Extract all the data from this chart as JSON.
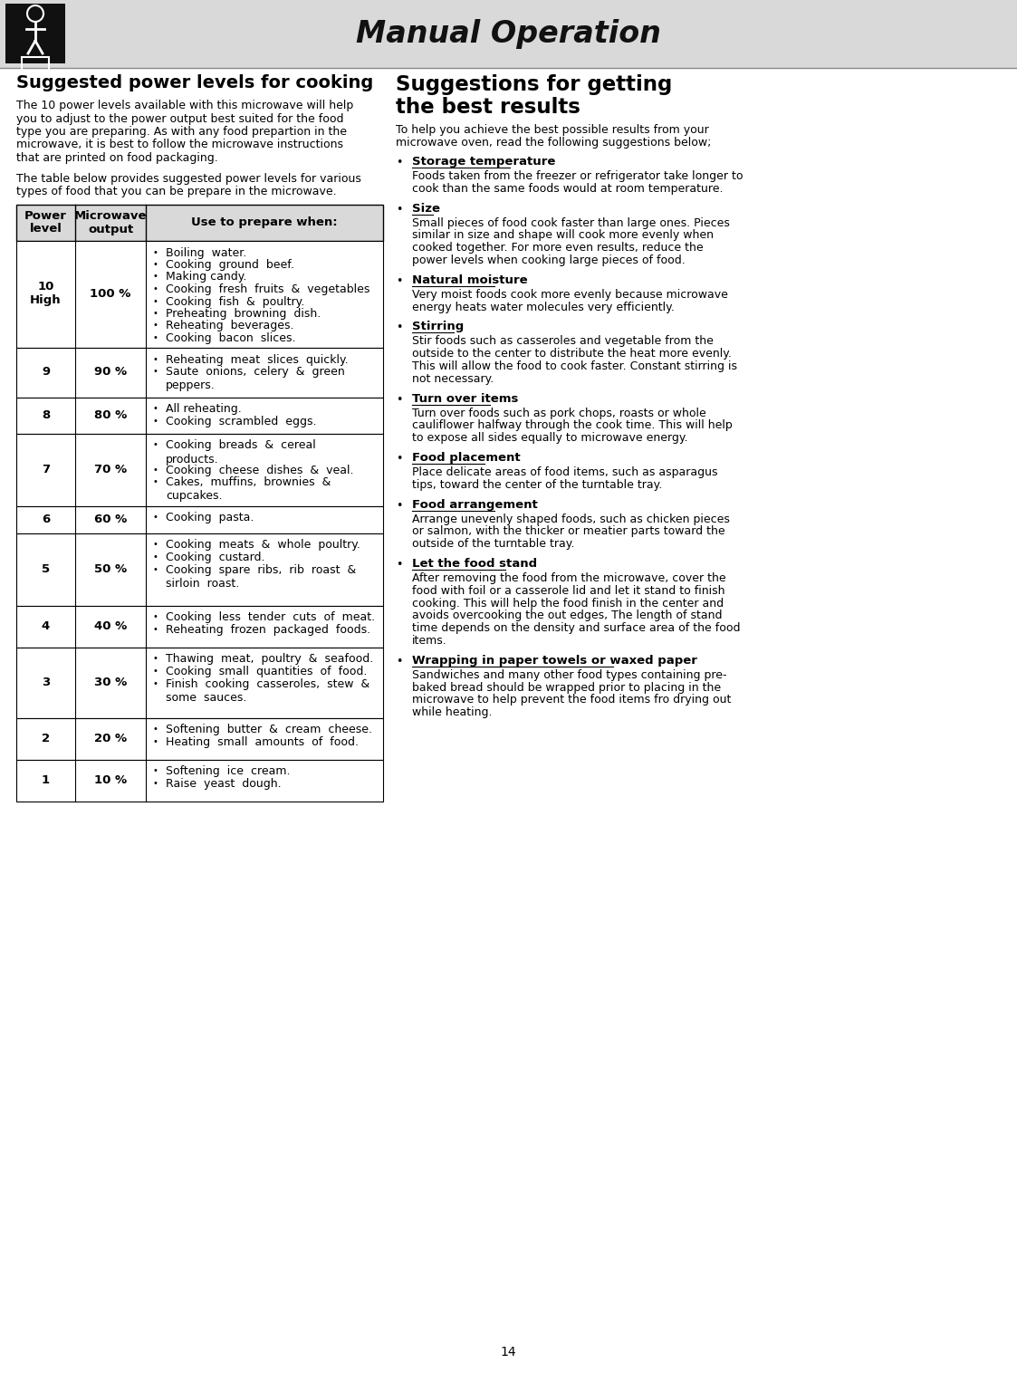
{
  "page_bg": "#ffffff",
  "header_bg": "#d9d9d9",
  "header_text": "Manual Operation",
  "header_icon_bg": "#111111",
  "table_header_bg": "#d9d9d9",
  "left_title": "Suggested power levels for cooking",
  "left_intro1": "The 10 power levels available with this microwave will help you to adjust to the power output best suited for the food type you are preparing. As with any food prepartion in the microwave, it is best to follow the microwave instructions that are printed on food packaging.",
  "left_intro2": "The table below provides suggested power levels for various types of food that you can be prepare in the microwave.",
  "table_headers": [
    "Power\nlevel",
    "Microwave\noutput",
    "Use to prepare when:"
  ],
  "table_rows": [
    {
      "level": "10\nHigh",
      "output": "100 %",
      "items": [
        "Boiling  water.",
        "Cooking  ground  beef.",
        "Making candy.",
        "Cooking  fresh  fruits  &  vegetables",
        "Cooking  fish  &  poultry.",
        "Preheating  browning  dish.",
        "Reheating  beverages.",
        "Cooking  bacon  slices."
      ]
    },
    {
      "level": "9",
      "output": "90 %",
      "items": [
        "Reheating  meat  slices  quickly.",
        "Saute  onions,  celery  &  green\npeppers."
      ]
    },
    {
      "level": "8",
      "output": "80 %",
      "items": [
        "All reheating.",
        "Cooking  scrambled  eggs."
      ]
    },
    {
      "level": "7",
      "output": "70 %",
      "items": [
        "Cooking  breads  &  cereal\nproducts.",
        "Cooking  cheese  dishes  &  veal.",
        "Cakes,  muffins,  brownies  &\ncupcakes."
      ]
    },
    {
      "level": "6",
      "output": "60 %",
      "items": [
        "Cooking  pasta."
      ]
    },
    {
      "level": "5",
      "output": "50 %",
      "items": [
        "Cooking  meats  &  whole  poultry.",
        "Cooking  custard.",
        "Cooking  spare  ribs,  rib  roast  &\nsirloin  roast."
      ]
    },
    {
      "level": "4",
      "output": "40 %",
      "items": [
        "Cooking  less  tender  cuts  of  meat.",
        "Reheating  frozen  packaged  foods."
      ]
    },
    {
      "level": "3",
      "output": "30 %",
      "items": [
        "Thawing  meat,  poultry  &  seafood.",
        "Cooking  small  quantities  of  food.",
        "Finish  cooking  casseroles,  stew  &\nsome  sauces."
      ]
    },
    {
      "level": "2",
      "output": "20 %",
      "items": [
        "Softening  butter  &  cream  cheese.",
        "Heating  small  amounts  of  food."
      ]
    },
    {
      "level": "1",
      "output": "10 %",
      "items": [
        "Softening  ice  cream.",
        "Raise  yeast  dough."
      ]
    }
  ],
  "right_title_line1": "Suggestions for getting",
  "right_title_line2": "the best results",
  "right_intro": "To help you achieve the best possible results from your microwave oven, read the following suggestions below;",
  "right_sections": [
    {
      "heading": "Storage  temperature",
      "body": "Foods taken from the freezer or refrigerator take longer to\ncook than the same foods would at room temperature."
    },
    {
      "heading": "Size",
      "body": "Small pieces of food cook faster than large ones. Pieces\nsimilar in size and shape will cook more evenly when\ncooked together. For more even results, reduce the\npower levels when cooking large pieces of food."
    },
    {
      "heading": "Natural  moisture",
      "body": "Very moist foods cook more evenly because microwave\nenergy heats water molecules very efficiently."
    },
    {
      "heading": "Stirring",
      "body": "Stir foods such as casseroles and vegetable from the\noutside to the center to distribute the heat more evenly.\nThis will allow the food to cook faster. Constant stirring is\nnot necessary."
    },
    {
      "heading": "Turn  over  items",
      "body": "Turn over foods such as pork chops, roasts or whole\ncauliflower halfway through the cook time. This will help\nto expose all sides equally to microwave energy."
    },
    {
      "heading": "Food  placement",
      "body": "Place delicate areas of food items, such as asparagus\ntips, toward the center of the turntable tray."
    },
    {
      "heading": "Food  arrangement",
      "body": "Arrange unevenly shaped foods, such as chicken pieces\nor salmon, with the thicker or meatier parts toward the\noutside of the turntable tray."
    },
    {
      "heading": "Let  the  food  stand",
      "body": "After removing the food from the microwave, cover the\nfood with foil or a casserole lid and let it stand to finish\ncooking. This will help the food finish in the center and\navoids overcooking the out edges, The length of stand\ntime depends on the density and surface area of the food\nitems."
    },
    {
      "heading": "Wrapping  in  paper  towels  or  waxed  paper",
      "body": "Sandwiches and many other food types containing pre-\nbaked bread should be wrapped prior to placing in the\nmicrowave to help prevent the food items fro drying out\nwhile heating."
    }
  ],
  "page_number": "14",
  "bullet_char": "•"
}
